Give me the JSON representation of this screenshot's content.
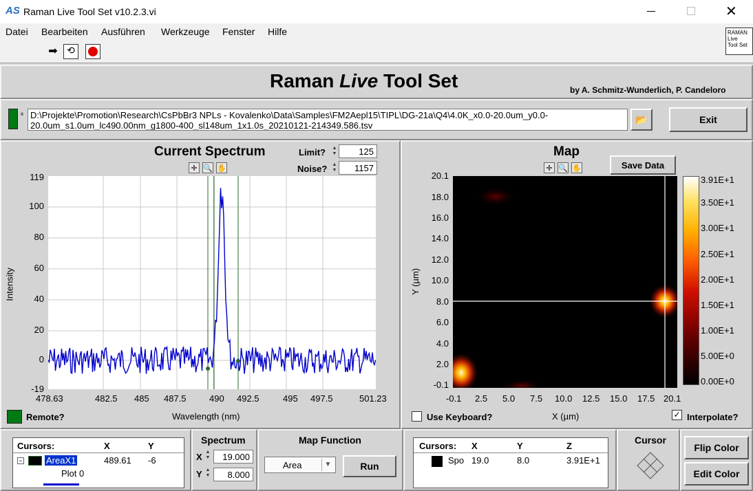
{
  "window": {
    "title": "Raman Live Tool Set v10.2.3.vi",
    "app_icon": "AS"
  },
  "menu": [
    "Datei",
    "Bearbeiten",
    "Ausführen",
    "Werkzeuge",
    "Fenster",
    "Hilfe"
  ],
  "corner_icon": "RAMAN\nLive\nTool Set",
  "header": {
    "title_pre": "Raman ",
    "title_live": "Live",
    "title_post": " Tool Set",
    "authors": "by A. Schmitz-Wunderlich, P. Candeloro"
  },
  "path": {
    "line1": "D:\\Projekte\\Promotion\\Research\\CsPbBr3 NPLs - Kovalenko\\Data\\Samples\\FM2Aepl15\\TIPL\\DG-21a\\Q4\\4.0K_x0.0-20.0um_y0.0-",
    "line2": "20.0um_s1.0um_lc490.00nm_g1800-400_sl148um_1x1.0s_20210121-214349.586.tsv"
  },
  "exit_label": "Exit",
  "spectrum": {
    "title": "Current Spectrum",
    "limit_label": "Limit?",
    "limit_value": "125",
    "noise_label": "Noise?",
    "noise_value": "1157",
    "ylabel": "Intensity",
    "xlabel": "Wavelength (nm)",
    "yticks": [
      "119",
      "100",
      "80",
      "60",
      "40",
      "20",
      "0",
      "-19"
    ],
    "xticks": [
      "478.63",
      "482.5",
      "485",
      "487.5",
      "490",
      "492.5",
      "495",
      "497.5",
      "501.23"
    ],
    "remote_label": "Remote?"
  },
  "map": {
    "title": "Map",
    "save_label": "Save Data",
    "ylabel": "Y (µm)",
    "xlabel": "X (µm)",
    "yticks": [
      "20.1",
      "18.0",
      "16.0",
      "14.0",
      "12.0",
      "10.0",
      "8.0",
      "6.0",
      "4.0",
      "2.0",
      "-0.1"
    ],
    "xticks": [
      "-0.1",
      "2.5",
      "5.0",
      "7.5",
      "10.0",
      "12.5",
      "15.0",
      "17.5",
      "20.1"
    ],
    "colorbar_ticks": [
      "3.91E+1",
      "3.50E+1",
      "3.00E+1",
      "2.50E+1",
      "2.00E+1",
      "1.50E+1",
      "1.00E+1",
      "5.00E+0",
      "0.00E+0"
    ],
    "use_keyboard_label": "Use Keyboard?",
    "interpolate_label": "Interpolate?"
  },
  "cursors_left": {
    "h1": "Cursors:",
    "h2": "X",
    "h3": "Y",
    "row1_name": "AreaX1",
    "row1_x": "489.61",
    "row1_y": "-6",
    "row2_name": "Plot 0"
  },
  "spectrum_ctrl": {
    "title": "Spectrum",
    "x_label": "X",
    "x_value": "19.000",
    "y_label": "Y",
    "y_value": "8.000"
  },
  "map_function": {
    "title": "Map Function",
    "selected": "Area",
    "run_label": "Run"
  },
  "cursors_right": {
    "h1": "Cursors:",
    "h2": "X",
    "h3": "Y",
    "h4": "Z",
    "row_name": "Spo",
    "row_x": "19.0",
    "row_y": "8.0",
    "row_z": "3.91E+1"
  },
  "cursor_title": "Cursor",
  "flip_color_label": "Flip Color",
  "edit_color_label": "Edit Color"
}
